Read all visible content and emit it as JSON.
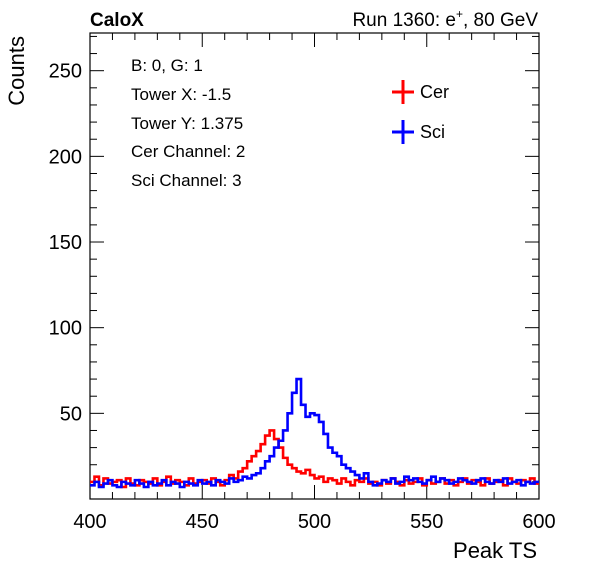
{
  "header": {
    "experiment": "CaloX",
    "run_prefix": "Run 1360: e",
    "run_superscript": "+",
    "run_suffix": ", 80 GeV"
  },
  "info_box": [
    "B: 0, G: 1",
    "Tower X: -1.5",
    "Tower Y: 1.375",
    "Cer Channel: 2",
    "Sci Channel: 3"
  ],
  "chart_data": {
    "type": "line",
    "step": true,
    "xlabel": "Peak TS",
    "ylabel": "Counts",
    "xlim": [
      400,
      600
    ],
    "ylim": [
      0,
      272
    ],
    "x_ticks": [
      400,
      450,
      500,
      550,
      600
    ],
    "y_ticks": [
      50,
      100,
      150,
      200,
      250
    ],
    "legend_position": "top-right",
    "series": [
      {
        "name": "Cer",
        "color": "#ff0000",
        "x": [
          400,
          402,
          404,
          406,
          408,
          410,
          412,
          414,
          416,
          418,
          420,
          422,
          424,
          426,
          428,
          430,
          432,
          434,
          436,
          438,
          440,
          442,
          444,
          446,
          448,
          450,
          452,
          454,
          456,
          458,
          460,
          462,
          464,
          466,
          468,
          470,
          472,
          474,
          476,
          478,
          480,
          482,
          484,
          486,
          488,
          490,
          492,
          494,
          496,
          498,
          500,
          502,
          504,
          506,
          508,
          510,
          512,
          514,
          516,
          518,
          520,
          522,
          524,
          526,
          528,
          530,
          532,
          534,
          536,
          538,
          540,
          542,
          544,
          546,
          548,
          550,
          552,
          554,
          556,
          558,
          560,
          562,
          564,
          566,
          568,
          570,
          572,
          574,
          576,
          578,
          580,
          582,
          584,
          586,
          588,
          590,
          592,
          594,
          596,
          598
        ],
        "values": [
          10,
          13,
          8,
          12,
          9,
          10,
          11,
          7,
          12,
          9,
          8,
          11,
          10,
          9,
          12,
          8,
          10,
          13,
          9,
          11,
          10,
          8,
          12,
          9,
          10,
          11,
          9,
          12,
          10,
          8,
          11,
          14,
          12,
          16,
          18,
          22,
          25,
          28,
          32,
          37,
          40,
          35,
          30,
          24,
          20,
          18,
          16,
          15,
          17,
          14,
          12,
          13,
          10,
          12,
          11,
          9,
          12,
          10,
          8,
          11,
          10,
          12,
          9,
          10,
          8,
          11,
          9,
          12,
          10,
          8,
          11,
          9,
          10,
          12,
          8,
          11,
          9,
          10,
          12,
          9,
          11,
          8,
          10,
          12,
          9,
          11,
          10,
          8,
          12,
          9,
          10,
          11,
          8,
          12,
          10,
          9,
          11,
          10,
          12,
          9
        ]
      },
      {
        "name": "Sci",
        "color": "#0000ff",
        "x": [
          400,
          402,
          404,
          406,
          408,
          410,
          412,
          414,
          416,
          418,
          420,
          422,
          424,
          426,
          428,
          430,
          432,
          434,
          436,
          438,
          440,
          442,
          444,
          446,
          448,
          450,
          452,
          454,
          456,
          458,
          460,
          462,
          464,
          466,
          468,
          470,
          472,
          474,
          476,
          478,
          480,
          482,
          484,
          486,
          488,
          490,
          492,
          494,
          496,
          498,
          500,
          502,
          504,
          506,
          508,
          510,
          512,
          514,
          516,
          518,
          520,
          522,
          524,
          526,
          528,
          530,
          532,
          534,
          536,
          538,
          540,
          542,
          544,
          546,
          548,
          550,
          552,
          554,
          556,
          558,
          560,
          562,
          564,
          566,
          568,
          570,
          572,
          574,
          576,
          578,
          580,
          582,
          584,
          586,
          588,
          590,
          592,
          594,
          596,
          598
        ],
        "values": [
          8,
          10,
          7,
          9,
          11,
          8,
          7,
          10,
          9,
          8,
          11,
          9,
          7,
          10,
          8,
          9,
          11,
          8,
          10,
          9,
          7,
          10,
          9,
          8,
          11,
          9,
          10,
          8,
          11,
          10,
          9,
          12,
          10,
          11,
          13,
          12,
          14,
          15,
          18,
          22,
          25,
          30,
          34,
          40,
          50,
          62,
          70,
          55,
          48,
          50,
          49,
          45,
          38,
          30,
          27,
          25,
          20,
          18,
          16,
          14,
          12,
          15,
          10,
          8,
          9,
          11,
          10,
          12,
          9,
          10,
          13,
          11,
          12,
          10,
          9,
          11,
          13,
          10,
          12,
          11,
          9,
          10,
          12,
          11,
          10,
          9,
          11,
          12,
          10,
          9,
          11,
          10,
          12,
          9,
          10,
          11,
          8,
          10,
          9,
          10
        ]
      }
    ]
  }
}
